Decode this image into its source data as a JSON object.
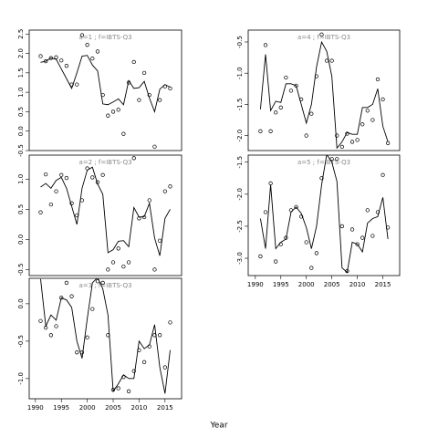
{
  "xlabel": "Year",
  "chart_data": [
    {
      "type": "line",
      "title": "a=1 ; f=IBTS-Q3",
      "x": [
        1991,
        1992,
        1993,
        1994,
        1995,
        1996,
        1997,
        1998,
        1999,
        2000,
        2001,
        2002,
        2003,
        2004,
        2005,
        2006,
        2007,
        2008,
        2009,
        2010,
        2011,
        2012,
        2013,
        2014,
        2015,
        2016
      ],
      "series": [
        {
          "style": "points",
          "color": "#000000",
          "values": [
            1.93,
            1.8,
            1.88,
            1.9,
            1.82,
            1.68,
            1.2,
            1.2,
            2.47,
            2.22,
            1.87,
            2.05,
            0.93,
            0.4,
            0.5,
            0.55,
            -0.07,
            1.25,
            1.78,
            0.8,
            1.5,
            0.93,
            -0.4,
            0.8,
            1.15,
            1.1
          ]
        },
        {
          "style": "line",
          "color": "#000000",
          "values": [
            1.77,
            1.8,
            1.88,
            1.85,
            1.6,
            1.35,
            1.1,
            1.5,
            1.93,
            1.95,
            1.7,
            1.55,
            0.7,
            0.68,
            0.75,
            0.83,
            0.68,
            1.3,
            1.1,
            1.12,
            1.28,
            0.85,
            0.5,
            1.08,
            1.2,
            1.13
          ]
        }
      ],
      "xlim": [
        1988.8,
        2018.2
      ],
      "ylim": [
        -0.5,
        2.6
      ],
      "yticks": [
        -0.5,
        {
          "value": 0,
          "label": "0.0"
        },
        0.5,
        {
          "value": 1,
          "label": "1.0"
        },
        1.5,
        {
          "value": 2,
          "label": "2.0"
        },
        2.5
      ]
    },
    {
      "type": "line",
      "title": "a=2 ; f=IBTS-Q3",
      "x": [
        1991,
        1992,
        1993,
        1994,
        1995,
        1996,
        1997,
        1998,
        1999,
        2000,
        2001,
        2002,
        2003,
        2004,
        2005,
        2006,
        2007,
        2008,
        2009,
        2010,
        2011,
        2012,
        2013,
        2014,
        2015,
        2016
      ],
      "series": [
        {
          "style": "points",
          "color": "#000000",
          "values": [
            0.45,
            1.08,
            0.58,
            0.8,
            1.07,
            1.02,
            0.6,
            0.4,
            0.65,
            1.18,
            1.03,
            0.95,
            1.07,
            -0.5,
            -0.38,
            -0.15,
            -0.45,
            -0.38,
            1.35,
            0.35,
            0.37,
            0.65,
            -0.5,
            -0.02,
            0.8,
            0.88
          ]
        },
        {
          "style": "line",
          "color": "#000000",
          "values": [
            0.87,
            0.93,
            0.85,
            0.98,
            1.03,
            0.85,
            0.55,
            0.25,
            0.85,
            1.15,
            1.2,
            0.92,
            0.75,
            -0.22,
            -0.17,
            -0.03,
            -0.02,
            -0.12,
            0.53,
            0.37,
            0.38,
            0.6,
            0.02,
            -0.27,
            0.35,
            0.5
          ]
        }
      ],
      "xlim": [
        1988.8,
        2018.2
      ],
      "ylim": [
        -0.6,
        1.4
      ],
      "yticks": [
        -0.5,
        {
          "value": 0,
          "label": "0.0"
        },
        0.5,
        {
          "value": 1,
          "label": "1.0"
        }
      ]
    },
    {
      "type": "line",
      "title": "a=3 ; f=IBTS-Q3",
      "x": [
        1991,
        1992,
        1993,
        1994,
        1995,
        1996,
        1997,
        1998,
        1999,
        2000,
        2001,
        2002,
        2003,
        2004,
        2005,
        2006,
        2007,
        2008,
        2009,
        2010,
        2011,
        2012,
        2013,
        2014,
        2015,
        2016
      ],
      "series": [
        {
          "style": "points",
          "color": "#000000",
          "values": [
            -0.23,
            -0.32,
            -0.42,
            -0.3,
            0.08,
            0.28,
            0.1,
            -0.65,
            -0.65,
            -0.45,
            -0.07,
            0.3,
            0.28,
            -0.42,
            -1.15,
            -1.13,
            -0.98,
            -1.17,
            -0.9,
            -0.62,
            -0.78,
            -0.57,
            -0.42,
            -0.42,
            -0.85,
            -0.25
          ]
        },
        {
          "style": "line",
          "color": "#000000",
          "values": [
            0.33,
            -0.3,
            -0.15,
            -0.22,
            0.08,
            0.05,
            -0.05,
            -0.5,
            -0.73,
            -0.2,
            0.28,
            0.35,
            0.2,
            -0.15,
            -1.17,
            -1.07,
            -0.95,
            -1.0,
            -1.0,
            -0.5,
            -0.6,
            -0.55,
            -0.28,
            -0.85,
            -1.2,
            -0.62
          ]
        }
      ],
      "xlim": [
        1988.8,
        2018.2
      ],
      "ylim": [
        -1.27,
        0.34
      ],
      "xticks": [
        1990,
        1995,
        2000,
        2005,
        2010,
        2015
      ],
      "yticks": [
        {
          "value": -1,
          "label": "-1.0"
        },
        -0.5,
        {
          "value": 0,
          "label": "0.0"
        }
      ]
    },
    {
      "type": "line",
      "title": "a=4 ; f=IBTS-Q3",
      "x": [
        1991,
        1992,
        1993,
        1994,
        1995,
        1996,
        1997,
        1998,
        1999,
        2000,
        2001,
        2002,
        2003,
        2004,
        2005,
        2006,
        2007,
        2008,
        2009,
        2010,
        2011,
        2012,
        2013,
        2014,
        2015,
        2016
      ],
      "series": [
        {
          "style": "points",
          "color": "#000000",
          "values": [
            -1.93,
            -0.55,
            -1.93,
            -1.63,
            -1.55,
            -1.07,
            -1.28,
            -1.2,
            -1.42,
            -2.0,
            -1.65,
            -1.05,
            -0.38,
            -0.8,
            -0.8,
            -2.0,
            -2.18,
            -1.97,
            -2.1,
            -2.07,
            -1.82,
            -1.6,
            -1.75,
            -1.1,
            -1.42,
            -2.12
          ]
        },
        {
          "style": "line",
          "color": "#000000",
          "values": [
            -1.58,
            -0.7,
            -1.6,
            -1.45,
            -1.47,
            -1.17,
            -1.17,
            -1.2,
            -1.5,
            -1.8,
            -1.5,
            -0.9,
            -0.5,
            -0.65,
            -1.05,
            -2.2,
            -2.1,
            -1.95,
            -1.98,
            -1.98,
            -1.55,
            -1.55,
            -1.5,
            -1.25,
            -1.85,
            -2.1
          ]
        }
      ],
      "xlim": [
        1988.6,
        2018.3
      ],
      "ylim": [
        -2.24,
        -0.31
      ],
      "yticks": [
        {
          "value": -2,
          "label": "-2.0"
        },
        -1.5,
        {
          "value": -1,
          "label": "-1.0"
        },
        -0.5
      ]
    },
    {
      "type": "line",
      "title": "a=5 ; f=IBTS-Q3",
      "x": [
        1991,
        1992,
        1993,
        1994,
        1995,
        1996,
        1997,
        1998,
        1999,
        2000,
        2001,
        2002,
        2003,
        2004,
        2005,
        2006,
        2007,
        2008,
        2009,
        2010,
        2011,
        2012,
        2013,
        2014,
        2015,
        2016
      ],
      "series": [
        {
          "style": "points",
          "color": "#000000",
          "values": [
            -2.97,
            -2.28,
            -1.83,
            -3.05,
            -2.78,
            -2.68,
            -2.25,
            -2.2,
            -2.35,
            -2.75,
            -3.15,
            -2.92,
            -1.75,
            -1.3,
            -1.45,
            -1.45,
            -2.5,
            -3.2,
            -2.55,
            -2.78,
            -2.68,
            -2.25,
            -2.65,
            -2.28,
            -1.7,
            -2.52
          ]
        },
        {
          "style": "line",
          "color": "#000000",
          "values": [
            -2.38,
            -2.85,
            -1.85,
            -2.85,
            -2.75,
            -2.7,
            -2.28,
            -2.2,
            -2.3,
            -2.52,
            -2.85,
            -2.5,
            -1.85,
            -1.38,
            -1.5,
            -1.8,
            -3.15,
            -3.22,
            -2.75,
            -2.78,
            -2.9,
            -2.45,
            -2.38,
            -2.35,
            -2.05,
            -2.7
          ]
        }
      ],
      "xlim": [
        1988.6,
        2018.3
      ],
      "ylim": [
        -3.27,
        -1.39
      ],
      "xticks": [
        1990,
        1995,
        2000,
        2005,
        2010,
        2015
      ],
      "yticks": [
        {
          "value": -3,
          "label": "-3.0"
        },
        -2.5,
        {
          "value": -2,
          "label": "-2.0"
        },
        -1.5
      ]
    }
  ]
}
